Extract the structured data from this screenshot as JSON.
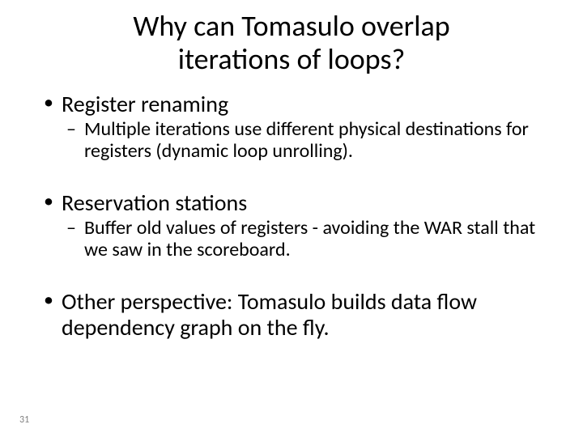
{
  "title_line1": "Why can Tomasulo overlap",
  "title_line2": "iterations of loops?",
  "bullets": [
    {
      "text": "Register renaming",
      "sub": "Multiple iterations use different physical destinations for registers (dynamic loop unrolling)."
    },
    {
      "text": "Reservation stations",
      "sub": "Buffer old values of registers - avoiding the WAR stall that we saw in the scoreboard."
    },
    {
      "text": "Other perspective: Tomasulo builds data flow dependency graph on the fly.",
      "sub": null
    }
  ],
  "slide_number": "31",
  "colors": {
    "background": "#ffffff",
    "text": "#000000",
    "slide_number": "#808080"
  },
  "fonts": {
    "title_size_pt": 36,
    "bullet_size_pt": 28,
    "sub_bullet_size_pt": 24,
    "slide_number_size_pt": 12,
    "family": "Calibri"
  }
}
